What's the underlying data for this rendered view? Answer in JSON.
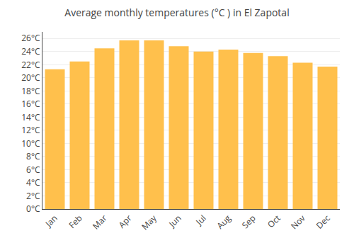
{
  "chart_data": {
    "type": "bar",
    "title": "Average monthly temperatures (°C ) in El Zapotal",
    "categories": [
      "Jan",
      "Feb",
      "Mar",
      "Apr",
      "May",
      "Jun",
      "Jul",
      "Aug",
      "Sep",
      "Oct",
      "Nov",
      "Dec"
    ],
    "values": [
      21.3,
      22.5,
      24.5,
      25.7,
      25.7,
      24.8,
      24.0,
      24.3,
      23.8,
      23.3,
      22.3,
      21.7
    ],
    "color": "#FFC04C",
    "ylim": [
      0,
      27
    ],
    "yticks": [
      {
        "value": 0,
        "label": "0°C"
      },
      {
        "value": 2,
        "label": "2°C"
      },
      {
        "value": 4,
        "label": "4°C"
      },
      {
        "value": 6,
        "label": "6°C"
      },
      {
        "value": 8,
        "label": "8°C"
      },
      {
        "value": 10,
        "label": "10°C"
      },
      {
        "value": 12,
        "label": "12°C"
      },
      {
        "value": 14,
        "label": "14°C"
      },
      {
        "value": 16,
        "label": "16°C"
      },
      {
        "value": 18,
        "label": "18°C"
      },
      {
        "value": 20,
        "label": "20°C"
      },
      {
        "value": 22,
        "label": "22°C"
      },
      {
        "value": 24,
        "label": "24°C"
      },
      {
        "value": 26,
        "label": "26°C"
      }
    ],
    "grid": true
  }
}
